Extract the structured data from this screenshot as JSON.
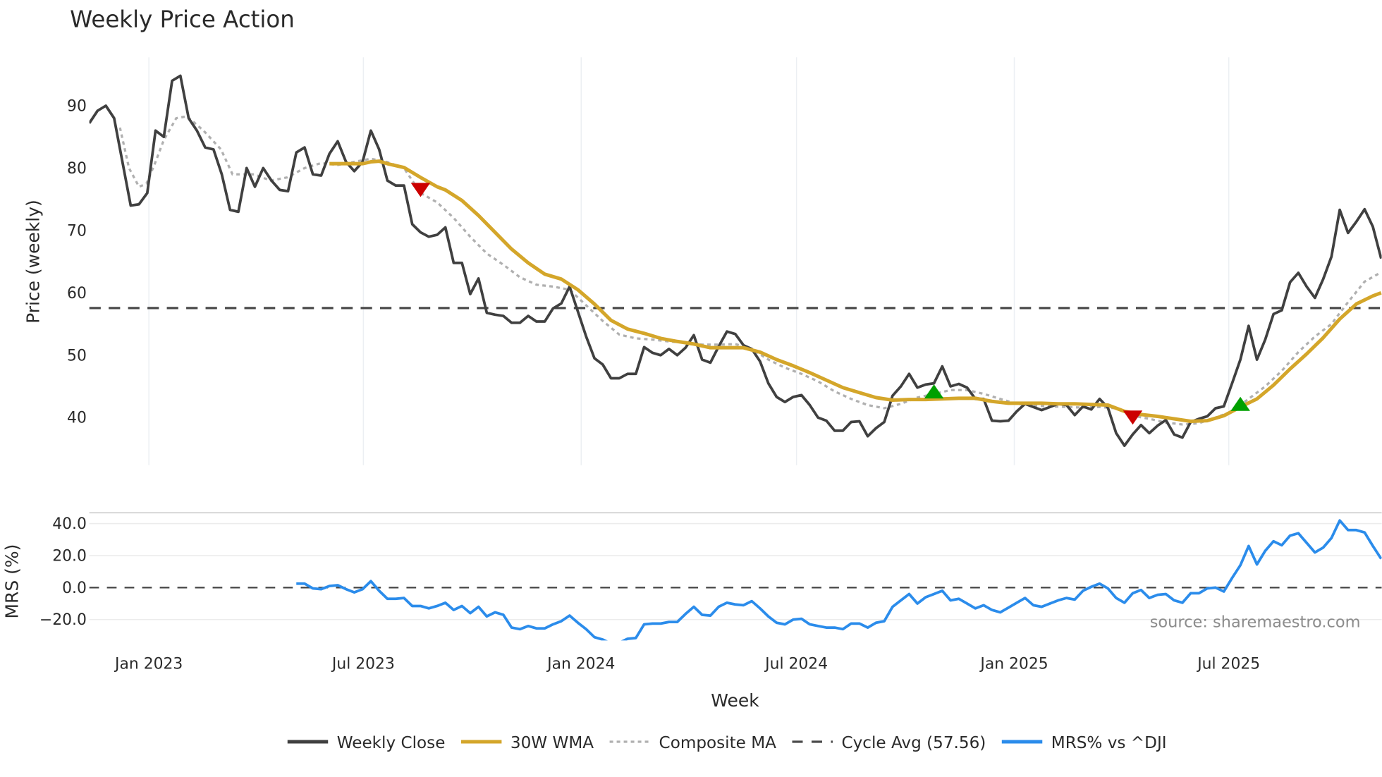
{
  "chart_data": [
    {
      "type": "line",
      "title": "Weekly Price Action",
      "xlabel": "Week",
      "ylabel": "Price (weekly)",
      "x_unit": "week index from first plotted week",
      "ylim": [
        33.5,
        97
      ],
      "yticks": [
        40,
        50,
        60,
        70,
        80,
        90
      ],
      "xticks": [
        {
          "label": "Jan 2023",
          "week": 7.2
        },
        {
          "label": "Jul 2023",
          "week": 33.1
        },
        {
          "label": "Jan 2024",
          "week": 59.4
        },
        {
          "label": "Jul 2024",
          "week": 85.4
        },
        {
          "label": "Jan 2025",
          "week": 111.7
        },
        {
          "label": "Jul 2025",
          "week": 137.6
        }
      ],
      "grid": "vertical",
      "series": [
        {
          "name": "Weekly Close",
          "color": "#404040",
          "start_week": 0,
          "values": [
            87.2,
            89.2,
            90,
            88,
            81,
            74,
            74.2,
            76,
            86,
            85,
            94,
            94.8,
            88,
            86,
            83.3,
            83,
            79,
            73.3,
            73,
            80,
            77,
            80,
            78,
            76.5,
            76.3,
            82.5,
            83.3,
            79,
            78.8,
            82.3,
            84.3,
            81,
            79.5,
            81,
            86,
            83,
            78,
            77.2,
            77.2,
            71,
            69.7,
            69,
            69.3,
            70.5,
            64.8,
            64.8,
            59.8,
            62.3,
            56.8,
            56.5,
            56.3,
            55.2,
            55.2,
            56.3,
            55.4,
            55.4,
            57.5,
            58.3,
            61,
            57,
            53,
            49.5,
            48.5,
            46.3,
            46.3,
            47,
            47,
            51.3,
            50.4,
            50,
            51,
            50,
            51.2,
            53.2,
            49.3,
            48.8,
            51.4,
            53.8,
            53.4,
            51.6,
            51,
            49,
            45.5,
            43.3,
            42.5,
            43.3,
            43.6,
            42,
            40,
            39.5,
            37.9,
            37.9,
            39.3,
            39.4,
            37,
            38.3,
            39.3,
            43.5,
            45,
            47,
            44.8,
            45.3,
            45.5,
            48.2,
            45,
            45.4,
            44.8,
            43,
            43,
            39.5,
            39.4,
            39.5,
            41,
            42.2,
            41.7,
            41.2,
            41.7,
            42.2,
            42,
            40.4,
            41.8,
            41.3,
            43,
            41.6,
            37.5,
            35.5,
            37.3,
            38.8,
            37.5,
            38.7,
            39.6,
            37.3,
            36.8,
            39.3,
            39.8,
            40.2,
            41.5,
            41.8,
            45.5,
            49.3,
            54.7,
            49.3,
            52.5,
            56.6,
            57.2,
            61.7,
            63.2,
            61,
            59.2,
            62.2,
            65.8,
            73.3,
            69.6,
            71.4,
            73.4,
            70.6,
            65.5
          ]
        },
        {
          "name": "30W WMA",
          "color": "#d4a62a",
          "points": [
            [
              29,
              80.7
            ],
            [
              31,
              80.7
            ],
            [
              33,
              80.7
            ],
            [
              34,
              81
            ],
            [
              35,
              81.1
            ],
            [
              36,
              80.7
            ],
            [
              38,
              80.1
            ],
            [
              40,
              78.5
            ],
            [
              42,
              77
            ],
            [
              43,
              76.5
            ],
            [
              45,
              74.8
            ],
            [
              47,
              72.4
            ],
            [
              49,
              69.7
            ],
            [
              51,
              67
            ],
            [
              53,
              64.8
            ],
            [
              55,
              63
            ],
            [
              57,
              62.2
            ],
            [
              59,
              60.5
            ],
            [
              61,
              58.2
            ],
            [
              63,
              55.6
            ],
            [
              65,
              54.2
            ],
            [
              67,
              53.5
            ],
            [
              69,
              52.7
            ],
            [
              71,
              52.2
            ],
            [
              73,
              51.8
            ],
            [
              75,
              51.2
            ],
            [
              77,
              51.2
            ],
            [
              79,
              51.2
            ],
            [
              81,
              50.5
            ],
            [
              83,
              49.3
            ],
            [
              85,
              48.3
            ],
            [
              87,
              47.2
            ],
            [
              89,
              46
            ],
            [
              91,
              44.8
            ],
            [
              93,
              44
            ],
            [
              95,
              43.2
            ],
            [
              97,
              42.8
            ],
            [
              99,
              42.9
            ],
            [
              101,
              42.9
            ],
            [
              103,
              43
            ],
            [
              105,
              43.1
            ],
            [
              107,
              43.1
            ],
            [
              109,
              42.6
            ],
            [
              111,
              42.3
            ],
            [
              113,
              42.3
            ],
            [
              115,
              42.3
            ],
            [
              117,
              42.2
            ],
            [
              119,
              42.2
            ],
            [
              121,
              42.1
            ],
            [
              123,
              42
            ],
            [
              125,
              41
            ],
            [
              127,
              40.5
            ],
            [
              129,
              40.2
            ],
            [
              131,
              39.8
            ],
            [
              133,
              39.4
            ],
            [
              135,
              39.5
            ],
            [
              137,
              40.3
            ],
            [
              139,
              41.7
            ],
            [
              141,
              43
            ],
            [
              143,
              45.2
            ],
            [
              145,
              47.8
            ],
            [
              147,
              50.2
            ],
            [
              149,
              52.8
            ],
            [
              151,
              55.8
            ],
            [
              153,
              58.2
            ],
            [
              155,
              59.5
            ],
            [
              156,
              60
            ]
          ]
        },
        {
          "name": "Composite MA",
          "color": "#b0b0b0",
          "points": [
            [
              3.7,
              86.5
            ],
            [
              4.8,
              80
            ],
            [
              6,
              77
            ],
            [
              6.9,
              77.5
            ],
            [
              8,
              81
            ],
            [
              9,
              84.5
            ],
            [
              10.5,
              88
            ],
            [
              11.8,
              88.3
            ],
            [
              13.8,
              86
            ],
            [
              15.9,
              83
            ],
            [
              17.3,
              79
            ],
            [
              19.9,
              79
            ],
            [
              21.9,
              78
            ],
            [
              23.9,
              78.5
            ],
            [
              26,
              80
            ],
            [
              28,
              80.8
            ],
            [
              30,
              80.5
            ],
            [
              32,
              81
            ],
            [
              34,
              81.5
            ],
            [
              35.9,
              81
            ],
            [
              38,
              80
            ],
            [
              40,
              76
            ],
            [
              42,
              74.5
            ],
            [
              44,
              72
            ],
            [
              46,
              69
            ],
            [
              48,
              66.3
            ],
            [
              50,
              64.5
            ],
            [
              52,
              62.5
            ],
            [
              54,
              61.3
            ],
            [
              56,
              61
            ],
            [
              58,
              60.5
            ],
            [
              60,
              58
            ],
            [
              62,
              55.5
            ],
            [
              64,
              53.3
            ],
            [
              66,
              52.7
            ],
            [
              68,
              52.5
            ],
            [
              70,
              52.2
            ],
            [
              72,
              52
            ],
            [
              74,
              51.7
            ],
            [
              76,
              51.7
            ],
            [
              78,
              51.8
            ],
            [
              80,
              51
            ],
            [
              82,
              49.3
            ],
            [
              84,
              48
            ],
            [
              86,
              47
            ],
            [
              88,
              45.8
            ],
            [
              90,
              44.2
            ],
            [
              92,
              43
            ],
            [
              94,
              42
            ],
            [
              96,
              41.5
            ],
            [
              98,
              42.2
            ],
            [
              100,
              43.2
            ],
            [
              102,
              43.8
            ],
            [
              104,
              44.4
            ],
            [
              106,
              44.4
            ],
            [
              108,
              43.8
            ],
            [
              110,
              43
            ],
            [
              112,
              42.2
            ],
            [
              114,
              41.9
            ],
            [
              116,
              41.8
            ],
            [
              118,
              41.7
            ],
            [
              120,
              41.6
            ],
            [
              122,
              41.7
            ],
            [
              124,
              41.5
            ],
            [
              126,
              40.3
            ],
            [
              128,
              39.8
            ],
            [
              130,
              39.2
            ],
            [
              132,
              38.9
            ],
            [
              134,
              39.1
            ],
            [
              136,
              40
            ],
            [
              138,
              41
            ],
            [
              140,
              43
            ],
            [
              142,
              45
            ],
            [
              144,
              47.5
            ],
            [
              146,
              50.5
            ],
            [
              148,
              53
            ],
            [
              150,
              55
            ],
            [
              152,
              58.5
            ],
            [
              154,
              61.8
            ],
            [
              156,
              63.3
            ]
          ]
        },
        {
          "name": "Cycle Avg (57.56)",
          "color": "#4a4a4a",
          "value": 57.56
        }
      ],
      "signals": [
        {
          "type": "sell",
          "week": 40,
          "price": 76.5,
          "color": "#cc0000"
        },
        {
          "type": "buy",
          "week": 102,
          "price": 44.2,
          "color": "#00a000"
        },
        {
          "type": "sell",
          "week": 126,
          "price": 40,
          "color": "#cc0000"
        },
        {
          "type": "buy",
          "week": 139,
          "price": 42.2,
          "color": "#00a000"
        }
      ]
    },
    {
      "type": "line",
      "ylabel": "MRS (%)",
      "ylim": [
        -32,
        48
      ],
      "yticks": [
        {
          "value": 40,
          "label": "40.0"
        },
        {
          "value": 20,
          "label": "20.0"
        },
        {
          "value": 0,
          "label": "0.0"
        },
        {
          "value": -20,
          "label": "−20.0"
        }
      ],
      "series": [
        {
          "name": "MRS% vs ^DJI",
          "color": "#2b8ceb",
          "start_week": 25,
          "values": [
            2.5,
            2.5,
            -0.5,
            -1,
            1,
            1.5,
            -1,
            -3,
            -1,
            4,
            -2,
            -7,
            -7,
            -6.5,
            -11.5,
            -11.5,
            -13,
            -11.5,
            -9.5,
            -14,
            -11.5,
            -16,
            -12,
            -18,
            -15.5,
            -17,
            -25,
            -26,
            -24,
            -25.5,
            -25.5,
            -23,
            -21,
            -17.5,
            -22,
            -26,
            -31,
            -32.5,
            -35,
            -34.5,
            -32,
            -31.5,
            -23,
            -22.5,
            -22.5,
            -21.5,
            -21.5,
            -16.5,
            -12,
            -17,
            -17.5,
            -12,
            -9.5,
            -10.5,
            -11,
            -8.5,
            -13,
            -18,
            -22,
            -23,
            -20,
            -19.5,
            -23,
            -24,
            -25,
            -25,
            -26,
            -22.5,
            -22.5,
            -25,
            -22,
            -21,
            -12,
            -8,
            -4,
            -10,
            -6,
            -4,
            -2,
            -8,
            -7,
            -10,
            -13,
            -11,
            -14,
            -15.5,
            -12.5,
            -9.5,
            -6.5,
            -11,
            -12,
            -10,
            -8,
            -6.5,
            -7.5,
            -2,
            0.5,
            2.5,
            -0.5,
            -6.5,
            -9.5,
            -3.5,
            -1.5,
            -6.5,
            -4.5,
            -4,
            -8,
            -9.5,
            -3.5,
            -3.5,
            -0.5,
            0,
            -2.5,
            6,
            14,
            26,
            14.5,
            23,
            29,
            26.5,
            32.5,
            34,
            28,
            22,
            25,
            31,
            42,
            36,
            36,
            34.5,
            26,
            18
          ]
        }
      ],
      "zero_line": 0,
      "annotation": "source: sharemaestro.com"
    }
  ],
  "legend": [
    {
      "label": "Weekly Close",
      "style": "solid",
      "color": "#404040"
    },
    {
      "label": "30W WMA",
      "style": "solid",
      "color": "#d4a62a"
    },
    {
      "label": "Composite MA",
      "style": "dotted",
      "color": "#b0b0b0"
    },
    {
      "label": "Cycle Avg (57.56)",
      "style": "dashed",
      "color": "#4a4a4a"
    },
    {
      "label": "MRS% vs ^DJI",
      "style": "solid",
      "color": "#2b8ceb"
    }
  ]
}
